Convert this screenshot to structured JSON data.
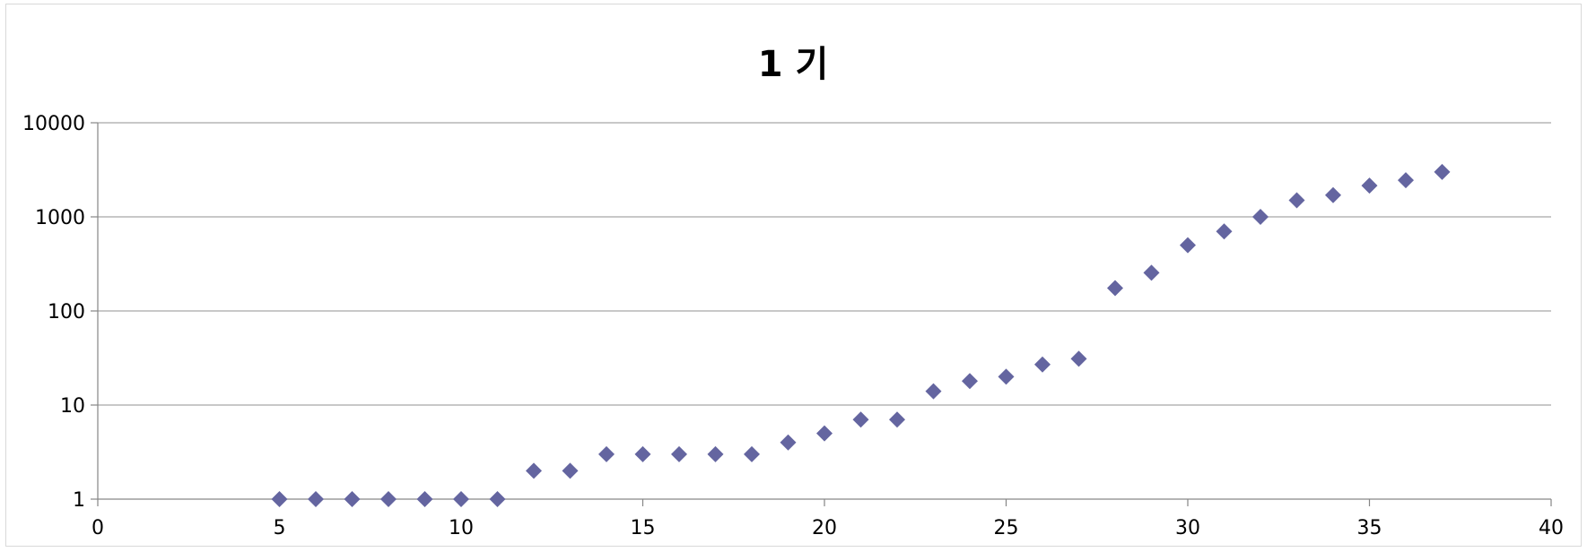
{
  "chart_data": {
    "type": "scatter",
    "title": "1 기",
    "xlabel": "",
    "ylabel": "",
    "xlim": [
      0,
      40
    ],
    "ylim": [
      1,
      10000
    ],
    "yscale": "log",
    "xticks": [
      0,
      5,
      10,
      15,
      20,
      25,
      30,
      35,
      40
    ],
    "yticks": [
      1,
      10,
      100,
      1000,
      10000
    ],
    "grid": "horizontal",
    "legend": "none",
    "marker": "diamond",
    "color": "#6465a0",
    "series": [
      {
        "x": [
          5,
          6,
          7,
          8,
          9,
          10,
          11,
          12,
          13,
          14,
          15,
          16,
          17,
          18,
          19,
          20,
          21,
          22,
          23,
          24,
          25,
          26,
          27,
          28,
          29,
          30,
          31,
          32,
          33,
          34,
          35,
          36,
          37
        ],
        "y": [
          1,
          1,
          1,
          1,
          1,
          1,
          1,
          2,
          2,
          3,
          3,
          3,
          3,
          3,
          4,
          5,
          7,
          7,
          14,
          18,
          20,
          27,
          31,
          175,
          255,
          500,
          700,
          1000,
          1500,
          1700,
          2150,
          2450,
          3000
        ]
      }
    ]
  }
}
